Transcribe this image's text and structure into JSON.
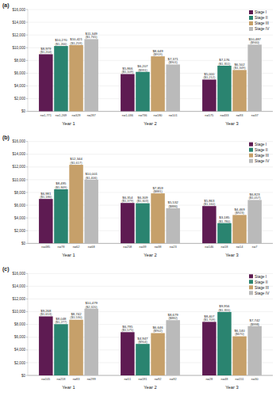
{
  "chart_data": [
    {
      "type": "bar",
      "title": "(a)",
      "categories": [
        "Year 1",
        "Year 2",
        "Year 3"
      ],
      "series": [
        {
          "name": "Stage I",
          "color": "#5e1b52",
          "values": [
            8979,
            5866,
            5000
          ],
          "value_labels": [
            "$8,979",
            "$5,866",
            "$5,000"
          ],
          "se_labels": [
            "($1,204)",
            "($1,109)",
            "($1,212)"
          ],
          "n_labels": [
            "n=1,771",
            "n=1,036",
            "n=575"
          ]
        },
        {
          "name": "Stage II",
          "color": "#2a8470",
          "values": [
            10270,
            6207,
            7176
          ],
          "value_labels": [
            "$10,270",
            "$6,207",
            "$7,176"
          ],
          "se_labels": [
            "($1,266)",
            "($991)",
            "($1,351)"
          ],
          "n_labels": [
            "n=1,269",
            "n=736",
            "n=433"
          ]
        },
        {
          "name": "Stage III",
          "color": "#c6a06a",
          "values": [
            10421,
            8649,
            6502
          ],
          "value_labels": [
            "$10,421",
            "$8,649",
            "$6,502"
          ],
          "se_labels": [
            "($1,259)",
            "($919)",
            "($1,349)"
          ],
          "n_labels": [
            "n=329",
            "n=180",
            "n=93"
          ]
        },
        {
          "name": "Stage IV",
          "color": "#bababa",
          "values": [
            11349,
            7371,
            10487
          ],
          "value_labels": [
            "$11,349",
            "$7,371",
            "$10,487"
          ],
          "se_labels": [
            "($1,765)",
            "($901)",
            "($940)"
          ],
          "n_labels": [
            "n=287",
            "n=101",
            "n=37"
          ]
        }
      ],
      "ylim": [
        0,
        16000
      ],
      "yticks": [
        {
          "value": 0,
          "label": "$0"
        },
        {
          "value": 2000,
          "label": "$2,000"
        },
        {
          "value": 4000,
          "label": "$4,000"
        },
        {
          "value": 6000,
          "label": "$6,000"
        },
        {
          "value": 8000,
          "label": "$8,000"
        },
        {
          "value": 10000,
          "label": "$10,000"
        },
        {
          "value": 12000,
          "label": "$12,000"
        },
        {
          "value": 14000,
          "label": "$14,000"
        },
        {
          "value": 16000,
          "label": "$16,000"
        }
      ],
      "grid": true,
      "legend": "upper right",
      "data_labels": true
    },
    {
      "type": "bar",
      "title": "(b)",
      "categories": [
        "Year 1",
        "Year 2",
        "Year 3"
      ],
      "series": [
        {
          "name": "Stage I",
          "color": "#5e1b52",
          "values": [
            6981,
            6354,
            5863
          ],
          "value_labels": [
            "$6,981",
            "$6,354",
            "$5,863"
          ],
          "se_labels": [
            "($1,186)",
            "($1,379)",
            "($1,160)"
          ],
          "n_labels": [
            "n=485",
            "n=258",
            "n=146"
          ]
        },
        {
          "name": "Stage II",
          "color": "#2a8470",
          "values": [
            8495,
            6309,
            3185
          ],
          "value_labels": [
            "$8,495",
            "$6,309",
            "$3,185"
          ],
          "se_labels": [
            "($1,849)",
            "($1,603)",
            "($1,780)"
          ],
          "n_labels": [
            "n=78",
            "n=39",
            "n=18"
          ]
        },
        {
          "name": "Stage III",
          "color": "#c6a06a",
          "values": [
            12344,
            7859,
            4469
          ],
          "value_labels": [
            "$12,344",
            "$7,859",
            "$4,469"
          ],
          "se_labels": [
            "($1,617)",
            "($881)",
            "($923)"
          ],
          "n_labels": [
            "n=62",
            "n=38",
            "n=14"
          ]
        },
        {
          "name": "Stage IV",
          "color": "#bababa",
          "values": [
            10001,
            5532,
            6823
          ],
          "value_labels": [
            "$10,001",
            "$5,532",
            "$6,823"
          ],
          "se_labels": [
            "($1,406)",
            "($886)",
            "($1,057)"
          ],
          "n_labels": [
            "n=68",
            "n=23",
            "n=7"
          ]
        }
      ],
      "ylim": [
        0,
        16000
      ],
      "yticks": [
        {
          "value": 0,
          "label": "$0"
        },
        {
          "value": 2000,
          "label": "$2,000"
        },
        {
          "value": 4000,
          "label": "$4,000"
        },
        {
          "value": 6000,
          "label": "$6,000"
        },
        {
          "value": 8000,
          "label": "$8,000"
        },
        {
          "value": 10000,
          "label": "$10,000"
        },
        {
          "value": 12000,
          "label": "$12,000"
        },
        {
          "value": 14000,
          "label": "$14,000"
        },
        {
          "value": 16000,
          "label": "$16,000"
        }
      ],
      "grid": true,
      "legend": "upper right",
      "data_labels": true
    },
    {
      "type": "bar",
      "title": "(c)",
      "categories": [
        "Year 1",
        "Year 2",
        "Year 3"
      ],
      "series": [
        {
          "name": "Stage I",
          "color": "#5e1b52",
          "values": [
            9268,
            6795,
            8407
          ],
          "value_labels": [
            "$9,268",
            "$6,795",
            "$8,407"
          ],
          "se_labels": [
            "($1,653)",
            "($1,575)",
            "($1,709)"
          ],
          "n_labels": [
            "n=105",
            "n=51",
            "n=28"
          ]
        },
        {
          "name": "Stage II",
          "color": "#2a8470",
          "values": [
            8048,
            4947,
            9956
          ],
          "value_labels": [
            "$8,048",
            "$4,947",
            "$9,956"
          ],
          "se_labels": [
            "($1,277)",
            "($904)",
            "($1,355)"
          ],
          "n_labels": [
            "n=218",
            "n=191",
            "n=48"
          ]
        },
        {
          "name": "Stage III",
          "color": "#c6a06a",
          "values": [
            8742,
            6646,
            6140
          ],
          "value_labels": [
            "$8,742",
            "$6,646",
            "$6,140"
          ],
          "se_labels": [
            "($1,530)",
            "($902)",
            "($670)"
          ],
          "n_labels": [
            "n=83",
            "n=92",
            "n=151"
          ]
        },
        {
          "name": "Stage IV",
          "color": "#bababa",
          "values": [
            10479,
            8679,
            7742
          ],
          "value_labels": [
            "$10,479",
            "$8,679",
            "$7,742"
          ],
          "se_labels": [
            "($2,320)",
            "($882)",
            "($998)"
          ],
          "n_labels": [
            "n=299",
            "n=92",
            "n=30"
          ]
        }
      ],
      "ylim": [
        0,
        16000
      ],
      "yticks": [
        {
          "value": 0,
          "label": "$0"
        },
        {
          "value": 2000,
          "label": "$2,000"
        },
        {
          "value": 4000,
          "label": "$4,000"
        },
        {
          "value": 6000,
          "label": "$6,000"
        },
        {
          "value": 8000,
          "label": "$8,000"
        },
        {
          "value": 10000,
          "label": "$10,000"
        },
        {
          "value": 12000,
          "label": "$12,000"
        },
        {
          "value": 14000,
          "label": "$14,000"
        },
        {
          "value": 16000,
          "label": "$16,000"
        }
      ],
      "grid": true,
      "legend": "upper right",
      "data_labels": true
    }
  ]
}
